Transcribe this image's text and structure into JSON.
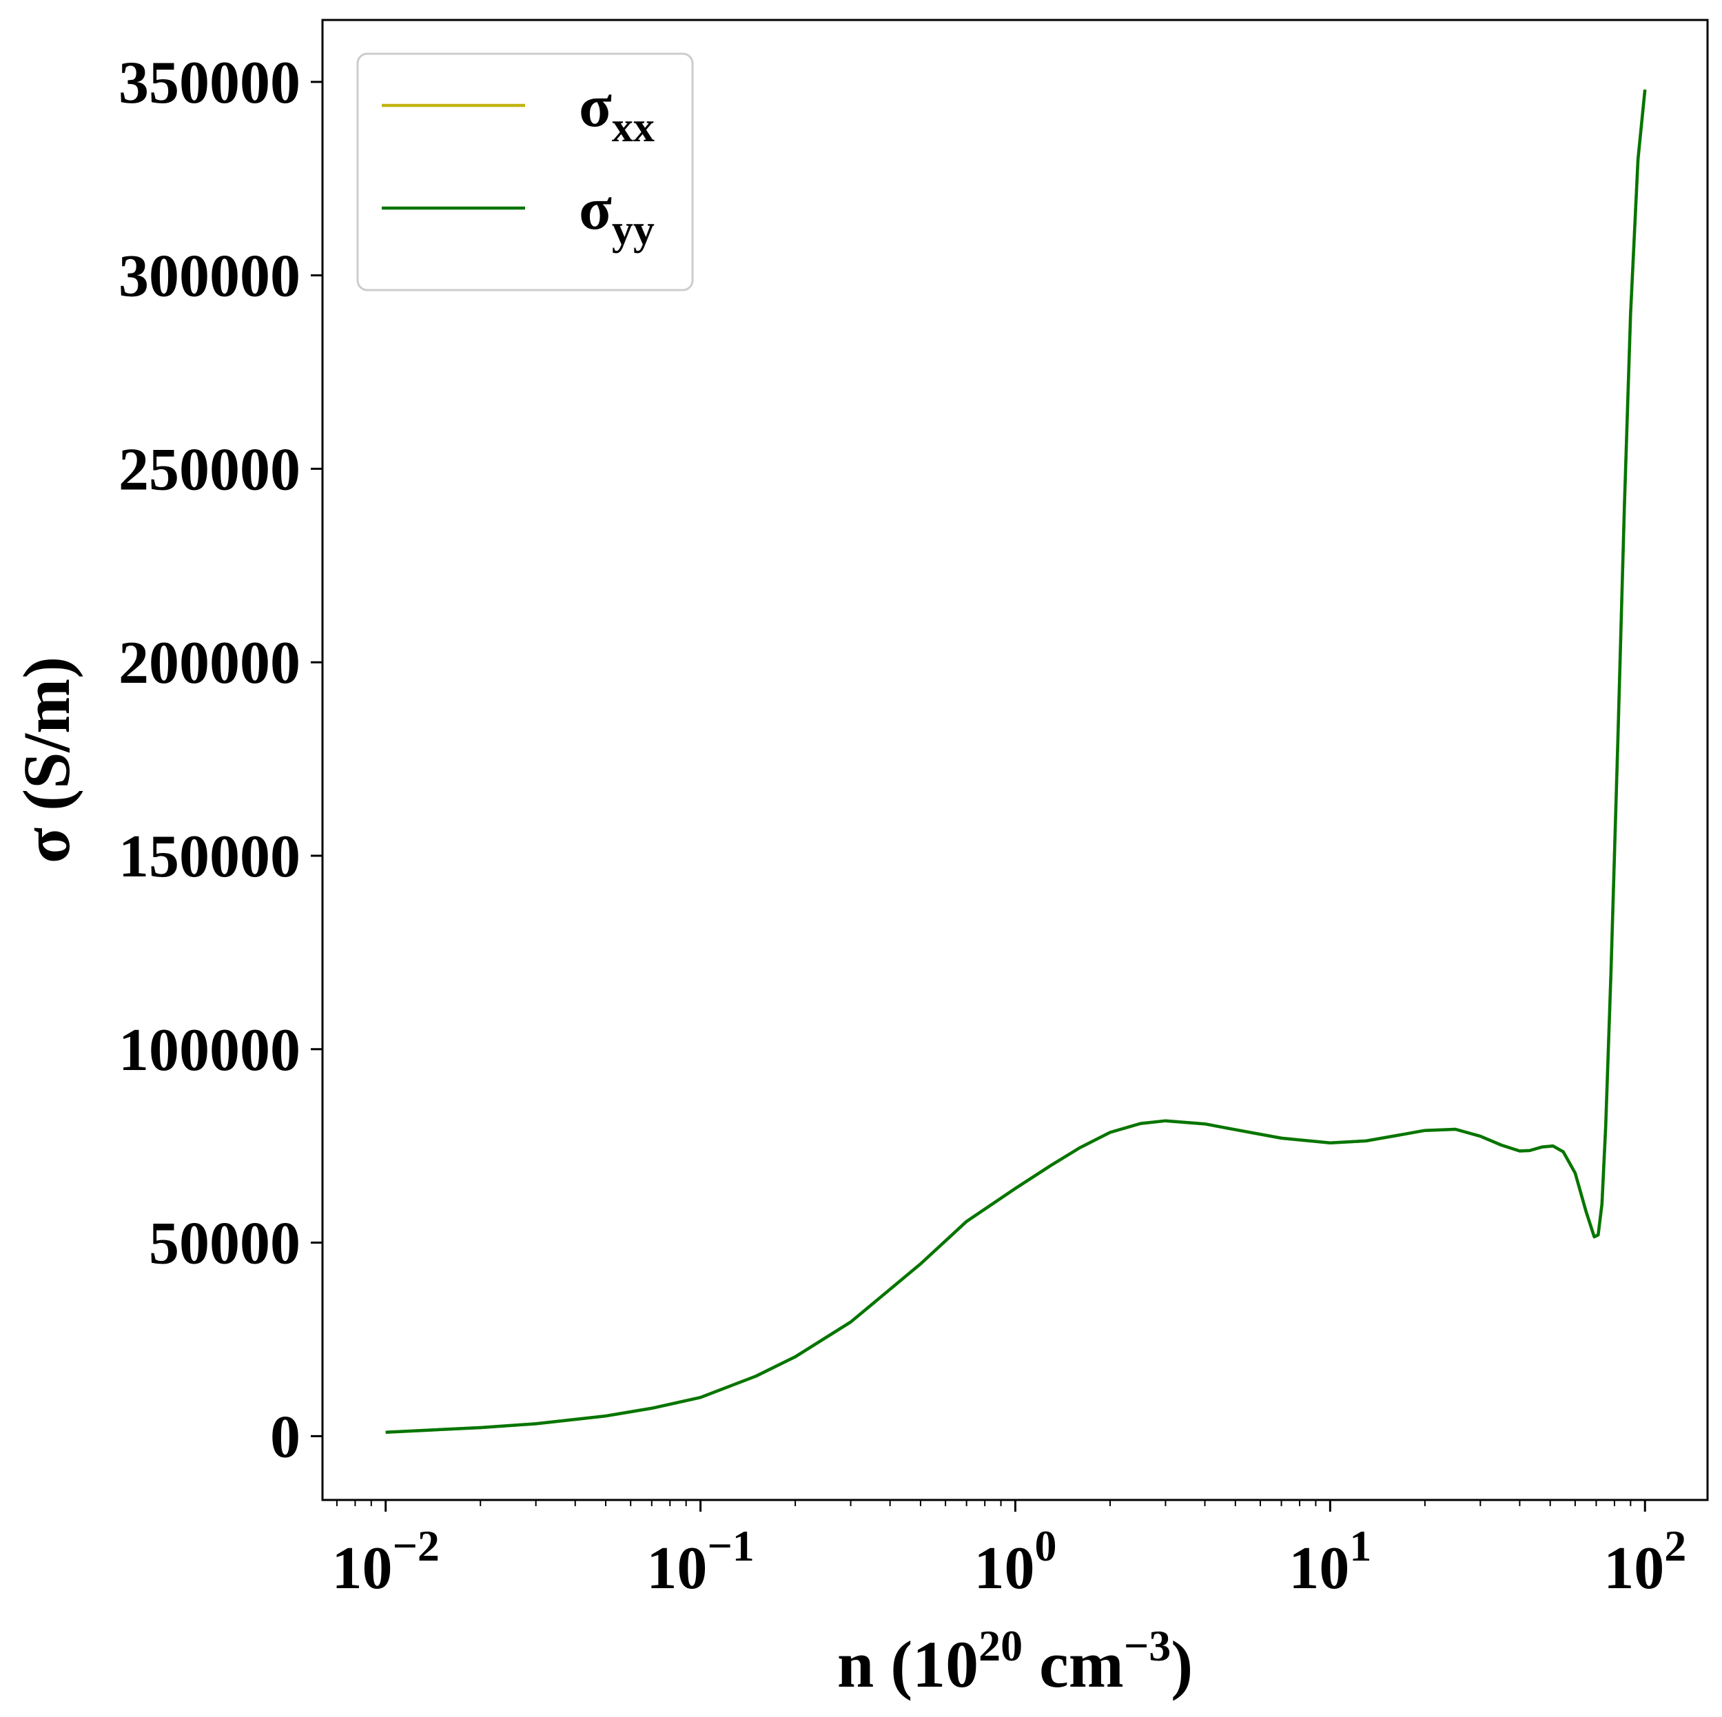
{
  "chart_data": {
    "type": "line",
    "xscale": "log",
    "xlim": [
      0.0063,
      158
    ],
    "ylim": [
      -16500,
      366000
    ],
    "grid": false,
    "legend": "top-left",
    "xlabel": {
      "main": "n (10",
      "sup1": "20",
      "mid": " cm",
      "sup2": "−3",
      "end": ")"
    },
    "ylabel": "σ (S/m)",
    "yticks": [
      {
        "value": 0,
        "label": "0"
      },
      {
        "value": 50000,
        "label": "50000"
      },
      {
        "value": 100000,
        "label": "100000"
      },
      {
        "value": 150000,
        "label": "150000"
      },
      {
        "value": 200000,
        "label": "200000"
      },
      {
        "value": 250000,
        "label": "250000"
      },
      {
        "value": 300000,
        "label": "300000"
      },
      {
        "value": 350000,
        "label": "350000"
      }
    ],
    "xticks": [
      {
        "value": 0.01,
        "base": "10",
        "exp": "−2"
      },
      {
        "value": 0.1,
        "base": "10",
        "exp": "−1"
      },
      {
        "value": 1,
        "base": "10",
        "exp": "0"
      },
      {
        "value": 10,
        "base": "10",
        "exp": "1"
      },
      {
        "value": 100,
        "base": "10",
        "exp": "2"
      }
    ],
    "x": [
      0.01,
      0.02,
      0.03,
      0.05,
      0.07,
      0.1,
      0.15,
      0.2,
      0.3,
      0.5,
      0.7,
      1.0,
      1.3,
      1.6,
      2.0,
      2.5,
      3.0,
      4.0,
      5.0,
      7.0,
      10.0,
      13.0,
      16.0,
      20.0,
      25.0,
      30.0,
      35.0,
      40.0,
      43.0,
      47.0,
      51.0,
      55.0,
      60.0,
      65.0,
      69.0,
      71.0,
      73.0,
      75.0,
      78.0,
      82.0,
      86.0,
      90.0,
      95.0,
      100.0
    ],
    "series": [
      {
        "name": "σxx",
        "label_main": "σ",
        "label_sub": "xx",
        "color": "#c3b312",
        "values": [
          1000,
          2200,
          3200,
          5200,
          7200,
          10000,
          15500,
          20500,
          29500,
          44500,
          55500,
          64000,
          70000,
          74500,
          78500,
          80800,
          81500,
          80700,
          79200,
          77000,
          75800,
          76300,
          77600,
          79000,
          79300,
          77500,
          75200,
          73700,
          73800,
          74700,
          75000,
          73500,
          68000,
          58000,
          51500,
          52000,
          60000,
          80000,
          120000,
          180000,
          240000,
          290000,
          330000,
          348000
        ]
      },
      {
        "name": "σyy",
        "label_main": "σ",
        "label_sub": "yy",
        "color": "#047504",
        "values": [
          1000,
          2200,
          3200,
          5200,
          7200,
          10000,
          15500,
          20500,
          29500,
          44500,
          55500,
          64000,
          70000,
          74500,
          78500,
          80800,
          81500,
          80700,
          79200,
          77000,
          75800,
          76300,
          77600,
          79000,
          79300,
          77500,
          75200,
          73700,
          73800,
          74700,
          75000,
          73500,
          68000,
          58000,
          51500,
          52000,
          60000,
          80000,
          120000,
          180000,
          240000,
          290000,
          330000,
          348000
        ]
      }
    ]
  }
}
